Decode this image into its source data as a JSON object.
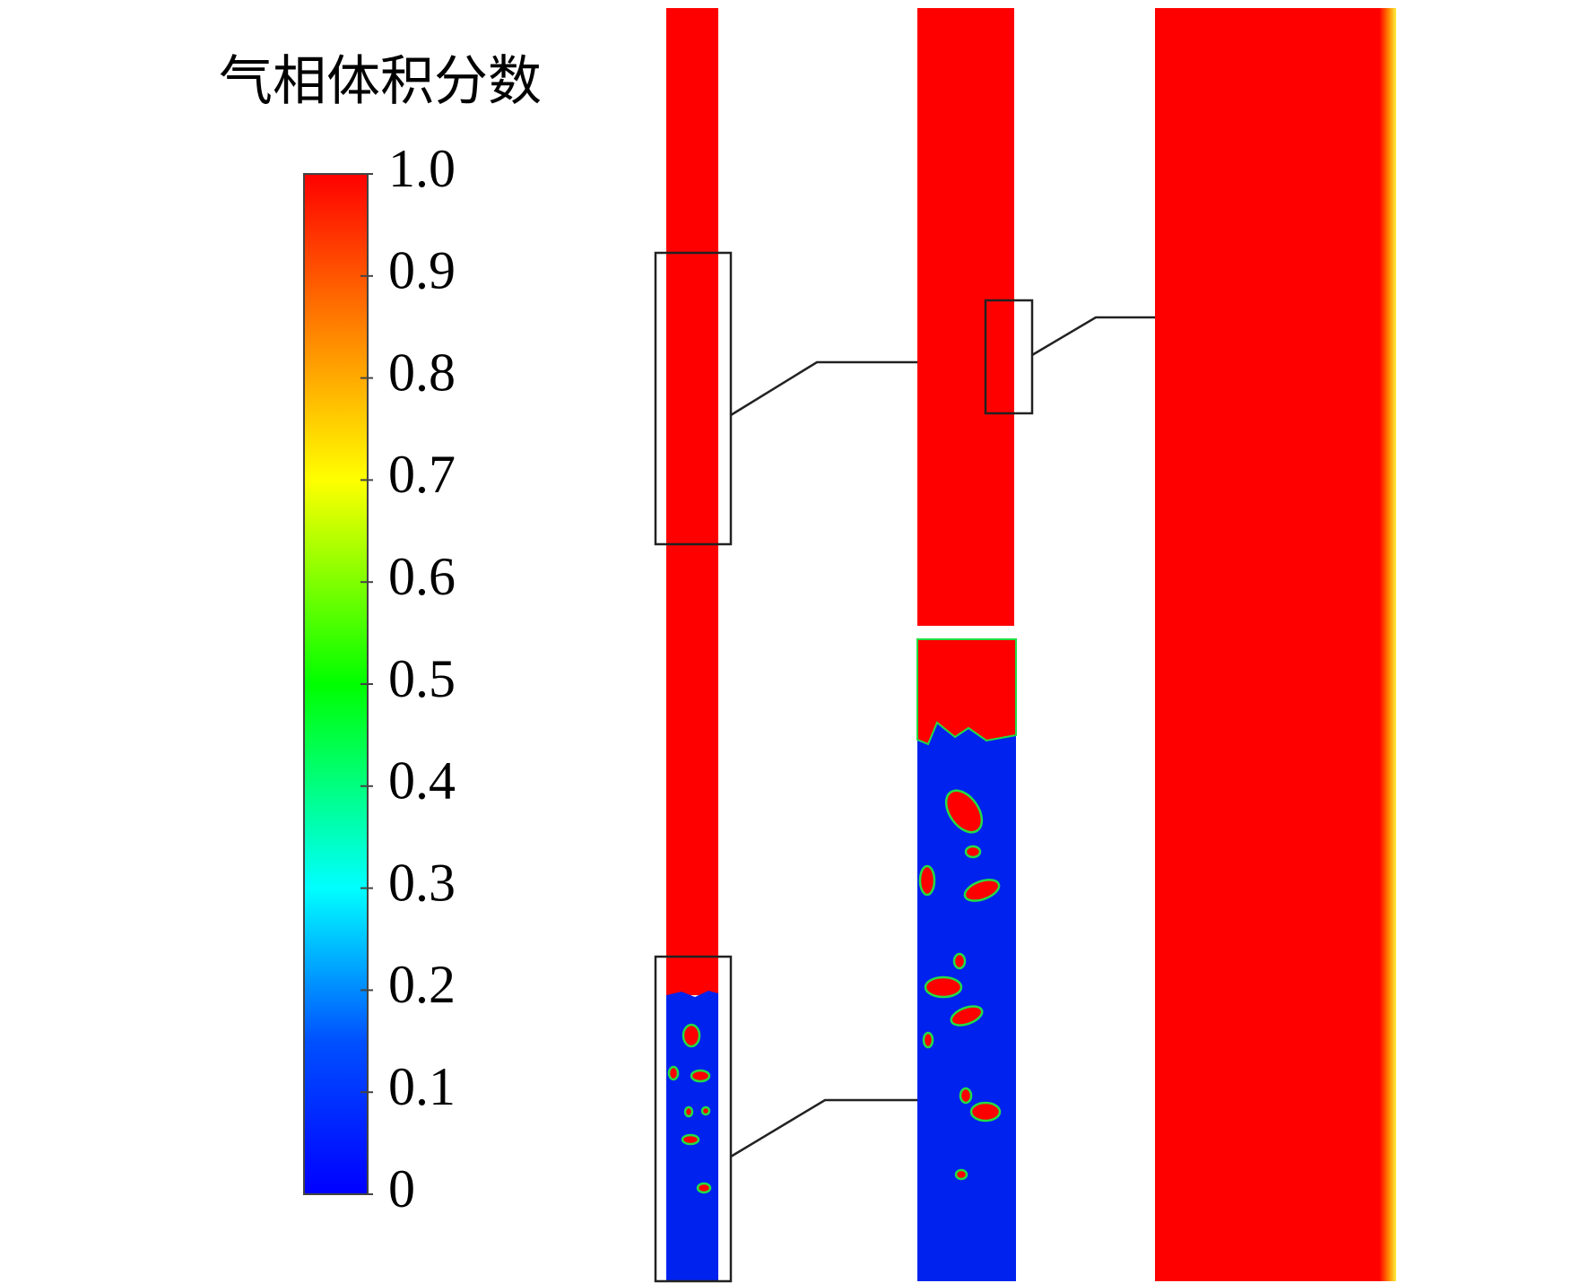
{
  "colorbar": {
    "title": "气相体积分数",
    "range": [
      0,
      1
    ],
    "ticks": [
      0,
      {
        "value": 0.1,
        "label": "0.1"
      },
      {
        "value": 0.2,
        "label": "0.2"
      },
      {
        "value": 0.3,
        "label": "0.3"
      },
      {
        "value": 0.4,
        "label": "0.4"
      },
      {
        "value": 0.5,
        "label": "0.5"
      },
      {
        "value": 0.6,
        "label": "0.6"
      },
      {
        "value": 0.7,
        "label": "0.7"
      },
      {
        "value": 0.8,
        "label": "0.8"
      },
      {
        "value": 0.9,
        "label": "0.9"
      },
      {
        "value": 1,
        "label": "1.0"
      }
    ]
  }
}
